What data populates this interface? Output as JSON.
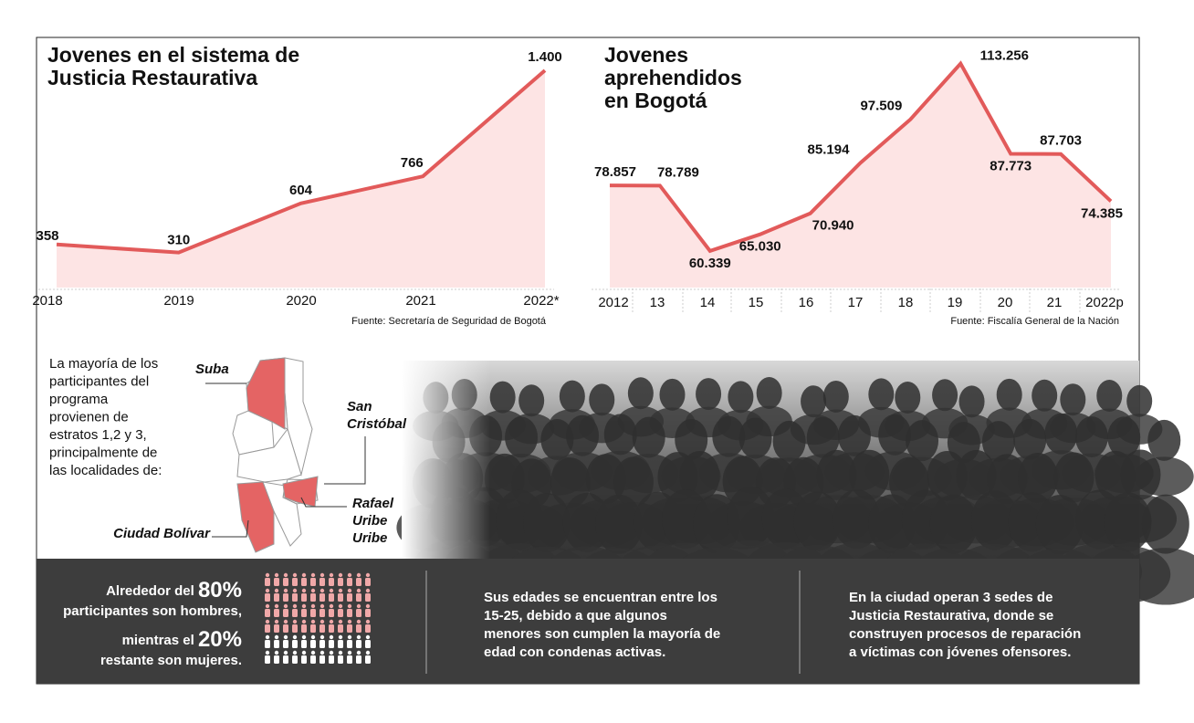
{
  "chart_data": [
    {
      "type": "area",
      "title": [
        "Jovenes en el sistema de",
        "Justicia Restaurativa"
      ],
      "categories": [
        "2018",
        "2019",
        "2020",
        "2021",
        "2022*"
      ],
      "values": [
        358,
        310,
        604,
        766,
        1400
      ],
      "value_labels": [
        "358",
        "310",
        "604",
        "766",
        "1.400"
      ],
      "color": "#e25a5a",
      "fill": "#fde4e4",
      "ylim": [
        100,
        1450
      ],
      "source": "Fuente: Secretaría de Seguridad de Bogotá"
    },
    {
      "type": "area",
      "title": [
        "Jovenes",
        "aprehendidos",
        "en Bogotá"
      ],
      "categories": [
        "2012",
        "13",
        "14",
        "15",
        "16",
        "17",
        "18",
        "19",
        "20",
        "21",
        "2022p"
      ],
      "values": [
        78857,
        78789,
        60339,
        65030,
        70940,
        85194,
        97509,
        113256,
        87773,
        87703,
        74385
      ],
      "value_labels": [
        "78.857",
        "78.789",
        "60.339",
        "65.030",
        "70.940",
        "85.194",
        "97.509",
        "113.256",
        "87.773",
        "87.703",
        "74.385"
      ],
      "color": "#e25a5a",
      "fill": "#fde4e4",
      "ylim": [
        50000,
        116000
      ],
      "source": "Fuente:  Fiscalía General de la Nación"
    }
  ],
  "map": {
    "text": [
      "La mayoría de los",
      "participantes del",
      "programa",
      "provienen de",
      "estratos 1,2 y 3,",
      "principalmente de",
      "las localidades de:"
    ],
    "localities": [
      [
        "Suba"
      ],
      [
        "San",
        "Cristóbal"
      ],
      [
        "Rafael",
        "Uribe",
        "Uribe"
      ],
      [
        "Ciudad Bolívar"
      ]
    ]
  },
  "facts": {
    "gender": {
      "line1": "Alrededor del",
      "pct1": "80%",
      "line2": "participantes son hombres,",
      "line3": "mientras el",
      "pct2": "20%",
      "line4": "restante son mujeres."
    },
    "ages": [
      "Sus edades se encuentran entre los",
      "15-25, debido a que algunos",
      "menores son cumplen la mayoría de",
      "edad con condenas activas."
    ],
    "sedes": [
      "En la ciudad operan 3 sedes de",
      "Justicia Restaurativa, donde se",
      "construyen procesos de reparación",
      "a víctimas con jóvenes ofensores."
    ]
  }
}
